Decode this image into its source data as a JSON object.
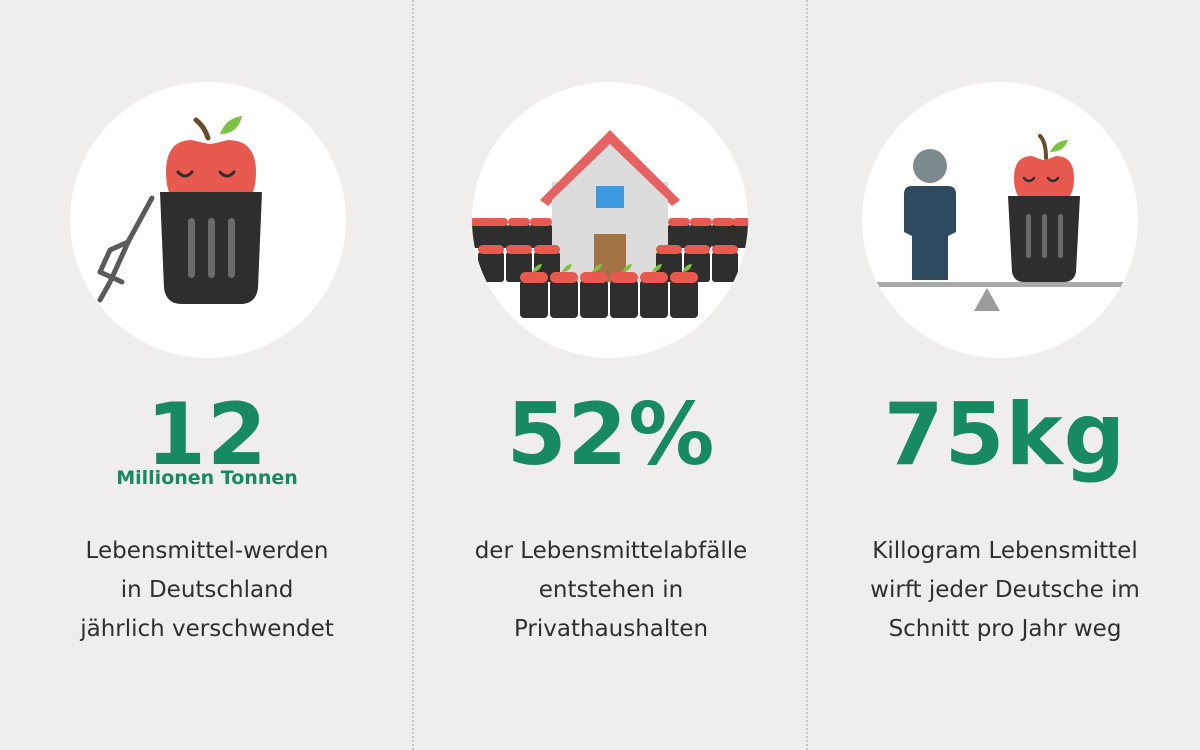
{
  "stats": [
    {
      "value": "12",
      "unit": "Millionen Tonnen",
      "lines": [
        "Lebensmittel-werden",
        "in Deutschland",
        "jährlich verschwendet"
      ]
    },
    {
      "value": "52%",
      "unit": "",
      "lines": [
        "der Lebensmittelabfälle",
        "entstehen in",
        "Privathaushalten"
      ]
    },
    {
      "value": "75kg",
      "unit": "",
      "lines": [
        "Killogram Lebensmittel",
        "wirft jeder Deutsche im",
        "Schnitt pro Jahr weg"
      ]
    }
  ],
  "icons": [
    "apple-in-trash-can-icon",
    "house-with-trash-cans-icon",
    "person-vs-trash-can-balance-icon"
  ],
  "colors": {
    "background": "#f0eeec",
    "accent_green": "#178a61",
    "apple_red": "#e85a4f",
    "bin_dark": "#2e2e2e",
    "person_blue": "#2e4a5e",
    "roof_red": "#e46262"
  }
}
